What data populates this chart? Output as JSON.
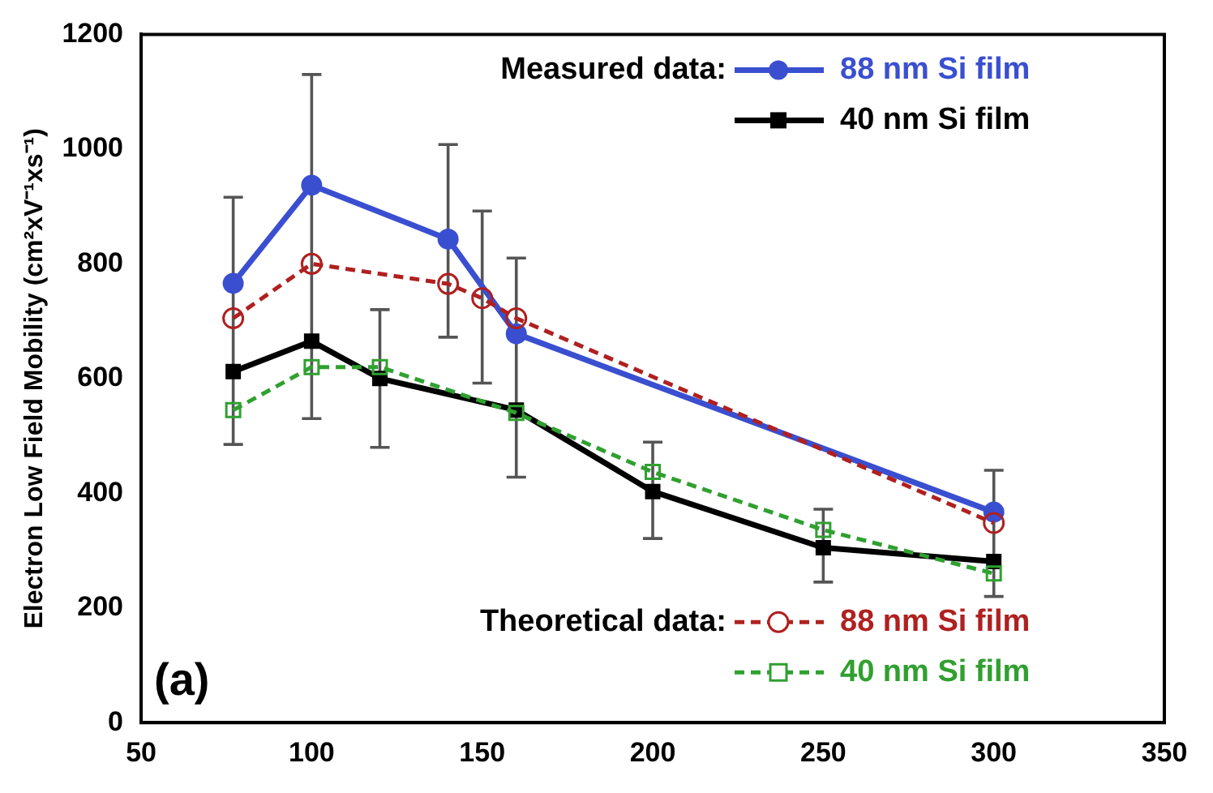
{
  "chart_data": {
    "type": "line",
    "ylabel": "Electron Low Field Mobility (cm²xV⁻¹xs⁻¹)",
    "xlim": [
      50,
      350
    ],
    "xticks": [
      50,
      100,
      150,
      200,
      250,
      300,
      350
    ],
    "ylim": [
      0,
      1200
    ],
    "yticks": [
      0,
      200,
      400,
      600,
      800,
      1000,
      1200
    ],
    "grid": false,
    "legend": "right",
    "annotations": [
      "Measured data:",
      "Theoretical data:",
      "(a)"
    ],
    "series": [
      {
        "name": "88 nm Si film",
        "color": "#3a4fd0",
        "marker": "circle",
        "line_style": "solid",
        "x": [
          77,
          100,
          140,
          160,
          300
        ],
        "values": [
          766,
          937,
          843,
          678,
          367
        ],
        "errors": [
          [
            485,
            916
          ],
          [
            530,
            1130
          ],
          [
            672,
            1008
          ],
          [
            428,
            810
          ],
          [
            220,
            440
          ]
        ]
      },
      {
        "name": "40 nm Si film",
        "color": "#000000",
        "marker": "square",
        "line_style": "solid",
        "x": [
          77,
          100,
          120,
          160,
          200,
          250,
          300
        ],
        "values": [
          612,
          665,
          600,
          545,
          403,
          305,
          281
        ],
        "errors": [
          null,
          null,
          [
            480,
            720
          ],
          null,
          [
            321,
            489
          ],
          [
            245,
            372
          ],
          null
        ]
      },
      {
        "name": "88 nm Si film",
        "color": "#b02020",
        "marker": "circle",
        "line_style": "dashed",
        "x": [
          77,
          100,
          140,
          150,
          160,
          300
        ],
        "values": [
          705,
          800,
          765,
          740,
          705,
          348
        ],
        "errors": [
          null,
          null,
          null,
          [
            592,
            892
          ],
          null,
          null
        ]
      },
      {
        "name": "40 nm Si film",
        "color": "#30a030",
        "marker": "square",
        "line_style": "dashed",
        "x": [
          77,
          100,
          120,
          160,
          200,
          250,
          300
        ],
        "values": [
          545,
          620,
          620,
          540,
          437,
          336,
          260
        ]
      }
    ]
  }
}
